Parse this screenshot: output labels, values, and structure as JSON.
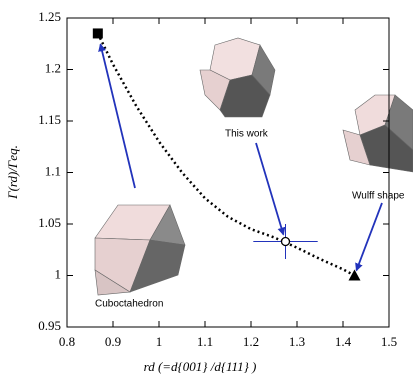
{
  "chart_data": {
    "type": "line",
    "xlabel": "rd (=d{001} /d{111} )",
    "ylabel": "Γ(rd)/Γeq.",
    "xlim": [
      0.8,
      1.5
    ],
    "xticks": [
      0.8,
      0.9,
      1,
      1.1,
      1.2,
      1.3,
      1.4,
      1.5
    ],
    "ylim": [
      0.95,
      1.25
    ],
    "yticks": [
      0.95,
      1,
      1.05,
      1.1,
      1.15,
      1.2,
      1.25
    ],
    "curve": {
      "color": "#000000",
      "style": "dotted",
      "x": [
        0.867,
        0.9,
        0.95,
        1.0,
        1.05,
        1.1,
        1.15,
        1.2,
        1.25,
        1.3,
        1.35,
        1.4,
        1.425
      ],
      "values": [
        1.235,
        1.205,
        1.165,
        1.13,
        1.1,
        1.075,
        1.057,
        1.045,
        1.037,
        1.027,
        1.016,
        1.006,
        1.0
      ]
    },
    "points": [
      {
        "x": 0.867,
        "y": 1.235,
        "marker": "square"
      },
      {
        "x": 1.275,
        "y": 1.033,
        "marker": "circle",
        "xerr": 0.07,
        "yerr": 0.017
      },
      {
        "x": 1.425,
        "y": 1.0,
        "marker": "triangle"
      }
    ],
    "annotations": [
      "Cuboctahedron",
      "This work",
      "Wulff shape"
    ],
    "arrow_color": "#2233bb"
  }
}
